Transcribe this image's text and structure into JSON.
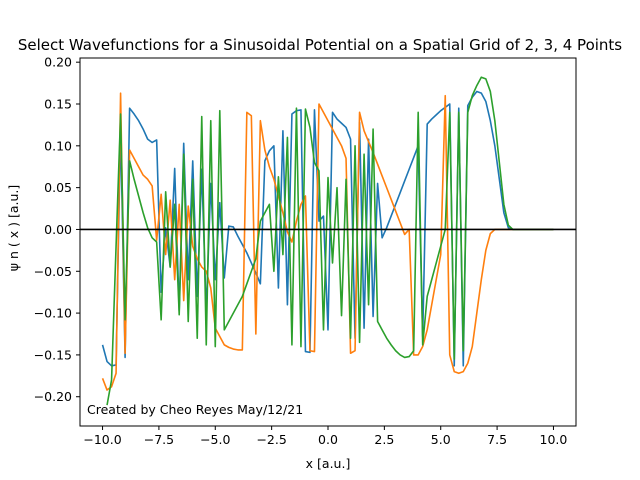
{
  "chart_data": {
    "type": "line",
    "title": "Select Wavefunctions for a Sinusoidal Potential on a Spatial Grid of 2, 3, 4 Points",
    "xlabel": "x [a.u.]",
    "ylabel": "ψ n ( x ) [a.u.]",
    "xlim": [
      -11.0,
      11.0
    ],
    "ylim": [
      -0.235,
      0.205
    ],
    "xticks": [
      -10.0,
      -7.5,
      -5.0,
      -2.5,
      0.0,
      2.5,
      5.0,
      7.5,
      10.0
    ],
    "xtick_labels": [
      "−10.0",
      "−7.5",
      "−5.0",
      "−2.5",
      "0.0",
      "2.5",
      "5.0",
      "7.5",
      "10.0"
    ],
    "yticks": [
      -0.2,
      -0.15,
      -0.1,
      -0.05,
      0.0,
      0.05,
      0.1,
      0.15,
      0.2
    ],
    "ytick_labels": [
      "−0.20",
      "−0.15",
      "−0.10",
      "−0.05",
      "0.00",
      "0.05",
      "0.10",
      "0.15",
      "0.20"
    ],
    "annotation": "Created by Cheo Reyes May/12/21",
    "hline": {
      "y": 0.0,
      "color": "#000000"
    },
    "grid": false,
    "series": [
      {
        "color": "#1f77b4",
        "x": [
          -10.0,
          -9.8,
          -9.6,
          -9.4,
          -9.2,
          -9.0,
          -8.8,
          -8.6,
          -8.4,
          -8.2,
          -8.0,
          -7.8,
          -7.6,
          -7.4,
          -7.2,
          -7.0,
          -6.8,
          -6.6,
          -6.4,
          -6.2,
          -6.0,
          -5.8,
          -5.6,
          -5.4,
          -5.2,
          -5.0,
          -4.8,
          -4.6,
          -4.4,
          -4.2,
          -4.0,
          -3.8,
          -3.6,
          -3.4,
          -3.2,
          -3.0,
          -2.8,
          -2.6,
          -2.4,
          -2.2,
          -2.0,
          -1.8,
          -1.6,
          -1.4,
          -1.2,
          -1.0,
          -0.8,
          -0.6,
          -0.4,
          -0.2,
          0.0,
          0.2,
          0.4,
          0.6,
          0.8,
          1.0,
          1.2,
          1.4,
          1.6,
          1.8,
          2.0,
          2.2,
          2.4,
          2.6,
          2.8,
          3.0,
          3.2,
          3.4,
          3.6,
          3.8,
          4.0,
          4.2,
          4.4,
          4.6,
          4.8,
          5.0,
          5.2,
          5.4,
          5.6,
          5.8,
          6.0,
          6.2,
          6.4,
          6.6,
          6.8,
          7.0,
          7.2,
          7.4,
          7.6,
          7.8,
          8.0,
          8.2,
          8.4,
          8.6,
          8.8,
          9.0,
          9.2,
          9.4,
          9.6,
          9.8,
          10.0
        ],
        "y": [
          -0.138,
          -0.158,
          -0.163,
          -0.162,
          0.122,
          -0.153,
          0.145,
          0.138,
          0.13,
          0.12,
          0.108,
          0.104,
          0.107,
          -0.075,
          0.002,
          -0.045,
          0.073,
          -0.097,
          0.103,
          -0.06,
          0.082,
          -0.08,
          0.072,
          -0.1,
          0.055,
          -0.06,
          0.032,
          -0.058,
          0.004,
          0.003,
          -0.008,
          -0.018,
          -0.028,
          -0.04,
          -0.052,
          -0.065,
          0.082,
          0.094,
          0.1,
          -0.07,
          0.118,
          -0.09,
          0.138,
          0.142,
          0.143,
          -0.146,
          -0.147,
          0.143,
          0.01,
          0.016,
          -0.12,
          0.14,
          0.132,
          0.127,
          0.122,
          0.108,
          -0.13,
          0.128,
          -0.118,
          0.108,
          -0.104,
          0.055,
          -0.01,
          0.002,
          0.016,
          0.03,
          0.044,
          0.058,
          0.072,
          0.086,
          0.1,
          -0.128,
          0.126,
          0.132,
          0.137,
          0.142,
          0.146,
          0.15,
          -0.163,
          0.145,
          -0.163,
          0.148,
          0.158,
          0.165,
          0.163,
          0.153,
          0.13,
          0.1,
          0.06,
          0.02,
          0.002,
          0.0,
          0.0,
          0.0,
          0.0,
          0.0,
          0.0,
          0.0,
          0.0,
          0.0,
          0.0
        ]
      },
      {
        "color": "#ff7f0e",
        "x": [
          -10.0,
          -9.8,
          -9.6,
          -9.4,
          -9.2,
          -9.0,
          -8.8,
          -8.6,
          -8.4,
          -8.2,
          -8.0,
          -7.8,
          -7.6,
          -7.4,
          -7.2,
          -7.0,
          -6.8,
          -6.6,
          -6.4,
          -6.2,
          -6.0,
          -5.8,
          -5.6,
          -5.4,
          -5.2,
          -5.0,
          -4.8,
          -4.6,
          -4.4,
          -4.2,
          -4.0,
          -3.8,
          -3.6,
          -3.4,
          -3.2,
          -3.0,
          -2.8,
          -2.6,
          -2.4,
          -2.2,
          -2.0,
          -1.8,
          -1.6,
          -1.4,
          -1.2,
          -1.0,
          -0.8,
          -0.6,
          -0.4,
          -0.2,
          0.0,
          0.2,
          0.4,
          0.6,
          0.8,
          1.0,
          1.2,
          1.4,
          1.6,
          1.8,
          2.0,
          2.2,
          2.4,
          2.6,
          2.8,
          3.0,
          3.2,
          3.4,
          3.6,
          3.8,
          4.0,
          4.2,
          4.4,
          4.6,
          4.8,
          5.0,
          5.2,
          5.4,
          5.6,
          5.8,
          6.0,
          6.2,
          6.4,
          6.6,
          6.8,
          7.0,
          7.2,
          7.4,
          7.6,
          7.8,
          8.0,
          8.2,
          8.4,
          8.6,
          8.8,
          9.0,
          9.2,
          9.4,
          9.6,
          9.8,
          10.0
        ],
        "y": [
          -0.178,
          -0.192,
          -0.188,
          -0.172,
          0.163,
          -0.148,
          0.095,
          0.085,
          0.075,
          0.065,
          0.06,
          0.052,
          -0.013,
          0.042,
          -0.03,
          0.035,
          -0.06,
          0.03,
          -0.085,
          0.028,
          -0.02,
          -0.035,
          -0.045,
          -0.05,
          -0.07,
          -0.118,
          -0.128,
          -0.138,
          -0.141,
          -0.143,
          -0.144,
          -0.144,
          0.14,
          0.136,
          -0.125,
          0.13,
          0.095,
          0.075,
          0.06,
          0.04,
          0.02,
          -0.003,
          -0.015,
          0.01,
          0.03,
          0.04,
          -0.145,
          -0.146,
          0.15,
          0.14,
          0.13,
          0.12,
          0.11,
          0.1,
          0.085,
          -0.148,
          -0.145,
          0.14,
          0.118,
          0.105,
          0.092,
          0.078,
          0.064,
          0.05,
          0.036,
          0.022,
          0.008,
          -0.006,
          0.0,
          -0.15,
          -0.15,
          -0.14,
          -0.12,
          -0.09,
          -0.06,
          -0.03,
          0.16,
          -0.15,
          -0.17,
          -0.172,
          -0.17,
          -0.16,
          -0.14,
          -0.1,
          -0.06,
          -0.025,
          -0.005,
          0.0,
          0.0,
          0.0,
          0.0,
          0.0,
          0.0,
          0.0,
          0.0,
          0.0,
          0.0,
          0.0,
          0.0,
          0.0,
          0.0
        ]
      },
      {
        "color": "#2ca02c",
        "x": [
          -9.8,
          -9.6,
          -9.4,
          -9.2,
          -9.0,
          -8.8,
          -8.6,
          -8.4,
          -8.2,
          -8.0,
          -7.8,
          -7.6,
          -7.4,
          -7.2,
          -7.0,
          -6.8,
          -6.6,
          -6.4,
          -6.2,
          -6.0,
          -5.8,
          -5.6,
          -5.4,
          -5.2,
          -5.0,
          -4.8,
          -4.6,
          -4.4,
          -4.2,
          -4.0,
          -3.8,
          -3.6,
          -3.4,
          -3.2,
          -3.0,
          -2.8,
          -2.6,
          -2.4,
          -2.2,
          -2.0,
          -1.8,
          -1.6,
          -1.4,
          -1.2,
          -1.0,
          -0.8,
          -0.6,
          -0.4,
          -0.2,
          0.0,
          0.2,
          0.4,
          0.6,
          0.8,
          1.0,
          1.2,
          1.4,
          1.6,
          1.8,
          2.0,
          2.2,
          2.4,
          2.6,
          2.8,
          3.0,
          3.2,
          3.4,
          3.6,
          3.8,
          4.0,
          4.2,
          4.4,
          4.6,
          4.8,
          5.0,
          5.2,
          5.4,
          5.6,
          5.8,
          6.0,
          6.2,
          6.4,
          6.6,
          6.8,
          7.0,
          7.2,
          7.4,
          7.6,
          7.8,
          8.0,
          8.2,
          8.4,
          8.6,
          8.8,
          9.0,
          9.2,
          9.4,
          9.6,
          9.8,
          10.0
        ],
        "y": [
          -0.21,
          -0.18,
          -0.02,
          0.138,
          -0.108,
          0.082,
          0.06,
          0.04,
          0.02,
          0.002,
          -0.01,
          -0.015,
          -0.108,
          0.045,
          -0.045,
          0.03,
          -0.102,
          0.09,
          -0.11,
          0.06,
          -0.13,
          0.135,
          -0.138,
          0.13,
          -0.14,
          0.142,
          -0.12,
          -0.11,
          -0.1,
          -0.09,
          -0.08,
          -0.065,
          -0.05,
          -0.035,
          0.01,
          0.02,
          0.03,
          -0.05,
          0.063,
          -0.03,
          0.11,
          -0.138,
          0.145,
          -0.14,
          0.144,
          0.122,
          0.08,
          0.07,
          -0.12,
          0.062,
          -0.04,
          0.05,
          -0.103,
          0.06,
          -0.13,
          0.1,
          -0.135,
          0.09,
          -0.09,
          0.12,
          -0.11,
          -0.12,
          -0.13,
          -0.138,
          -0.145,
          -0.15,
          -0.153,
          -0.152,
          -0.145,
          0.14,
          -0.138,
          -0.08,
          -0.06,
          -0.04,
          -0.02,
          0.0,
          0.14,
          -0.155,
          0.14,
          -0.145,
          0.14,
          0.16,
          0.172,
          0.182,
          0.18,
          0.165,
          0.13,
          0.08,
          0.03,
          0.005,
          0.0,
          0.0,
          0.0,
          0.0,
          0.0,
          0.0,
          0.0,
          0.0,
          0.0,
          0.0
        ]
      }
    ]
  }
}
